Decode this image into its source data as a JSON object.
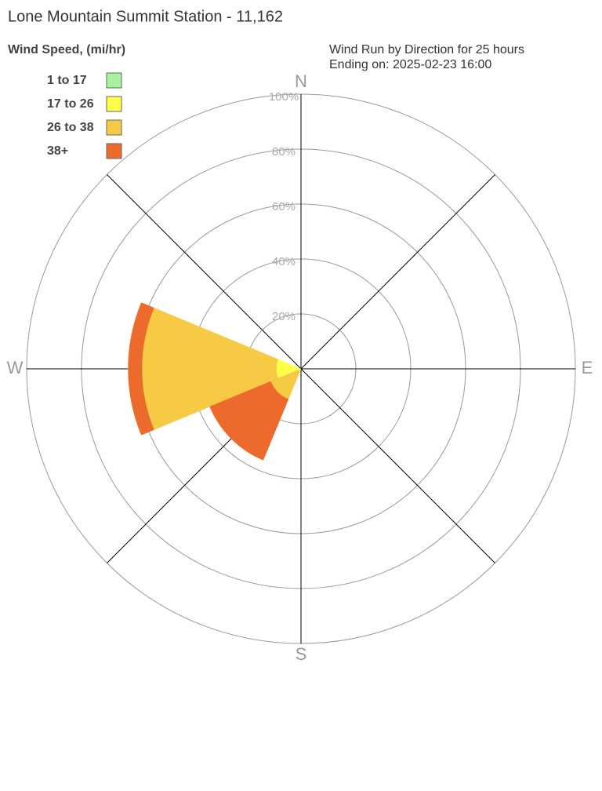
{
  "chart_data": {
    "type": "windrose",
    "title": "Lone Mountain Summit Station - 11,162",
    "legend_title": "Wind Speed, (mi/hr)",
    "subtitle": [
      "Wind Run by Direction for 25 hours",
      "Ending on: 2025-02-23 16:00"
    ],
    "categories": [
      "N",
      null,
      "E",
      null,
      "S",
      null,
      "W",
      null
    ],
    "series": [
      {
        "name": "1 to 17",
        "color": "#a6f29e",
        "values": [
          0,
          0,
          0,
          0,
          0,
          0,
          0,
          0
        ]
      },
      {
        "name": "17 to 26",
        "color": "#ffff4a",
        "values": [
          0,
          0,
          0,
          0,
          0,
          1,
          9,
          0
        ]
      },
      {
        "name": "26 to 38",
        "color": "#f7ca45",
        "values": [
          0,
          0,
          0,
          0,
          0,
          11,
          49,
          0
        ]
      },
      {
        "name": "38+",
        "color": "#ec6b2c",
        "values": [
          0,
          0,
          0,
          0,
          0,
          24,
          5,
          0
        ]
      }
    ],
    "ylim": [
      0,
      100
    ],
    "yticks": [
      {
        "value": 20,
        "label": "20%"
      },
      {
        "value": 40,
        "label": "40%"
      },
      {
        "value": 60,
        "label": "60%"
      },
      {
        "value": 80,
        "label": "80%"
      },
      {
        "value": 100,
        "label": "100%"
      }
    ],
    "grid": true,
    "legend": "top-left"
  }
}
